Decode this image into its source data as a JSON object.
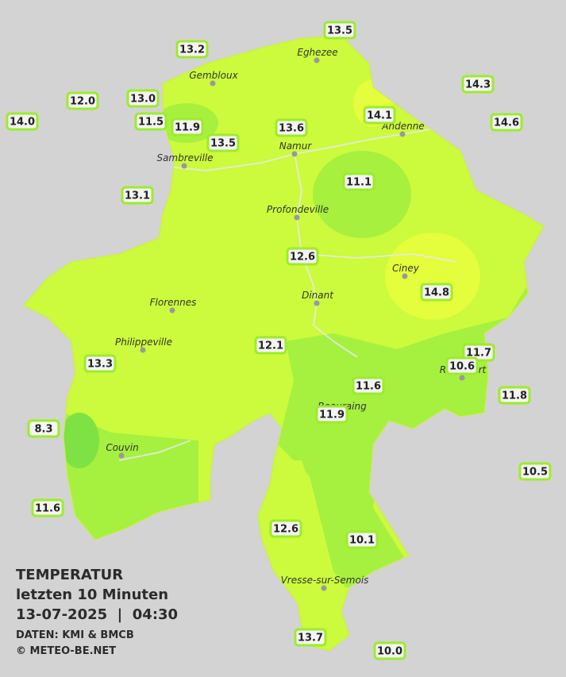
{
  "title": {
    "heading": "TEMPERATUR",
    "period": "letzten 10 Minuten",
    "datetime": "13-07-2025  |  04:30",
    "source": "DATEN: KMI & BMCB",
    "copyright": "© METEO-BE.NET"
  },
  "stations": [
    {
      "value": "13.5",
      "italic": false
    },
    {
      "value": "13.2",
      "italic": false
    },
    {
      "value": "14.3",
      "italic": false
    },
    {
      "value": "12.0",
      "italic": false
    },
    {
      "value": "13.0",
      "italic": false
    },
    {
      "value": "14.1",
      "italic": false
    },
    {
      "value": "14.0",
      "italic": true
    },
    {
      "value": "11.5",
      "italic": false
    },
    {
      "value": "11.9",
      "italic": false
    },
    {
      "value": "13.6",
      "italic": false
    },
    {
      "value": "14.6",
      "italic": false
    },
    {
      "value": "13.5",
      "italic": false
    },
    {
      "value": "11.1",
      "italic": false
    },
    {
      "value": "13.1",
      "italic": false
    },
    {
      "value": "12.6",
      "italic": true
    },
    {
      "value": "14.8",
      "italic": false
    },
    {
      "value": "12.1",
      "italic": false
    },
    {
      "value": "11.7",
      "italic": false
    },
    {
      "value": "10.6",
      "italic": true
    },
    {
      "value": "13.3",
      "italic": false
    },
    {
      "value": "11.6",
      "italic": false
    },
    {
      "value": "11.8",
      "italic": true
    },
    {
      "value": "11.9",
      "italic": true
    },
    {
      "value": "8.3",
      "italic": false
    },
    {
      "value": "10.5",
      "italic": false
    },
    {
      "value": "11.6",
      "italic": true
    },
    {
      "value": "12.6",
      "italic": false
    },
    {
      "value": "10.1",
      "italic": false
    },
    {
      "value": "13.7",
      "italic": false
    },
    {
      "value": "10.0",
      "italic": false
    }
  ],
  "cities": [
    "Eghezee",
    "Gembloux",
    "Andenne",
    "Namur",
    "Sambreville",
    "Profondeville",
    "Ciney",
    "Dinant",
    "Florennes",
    "Philippeville",
    "Rochefort",
    "Beauraing",
    "Couvin",
    "Vresse-sur-Semois"
  ]
}
